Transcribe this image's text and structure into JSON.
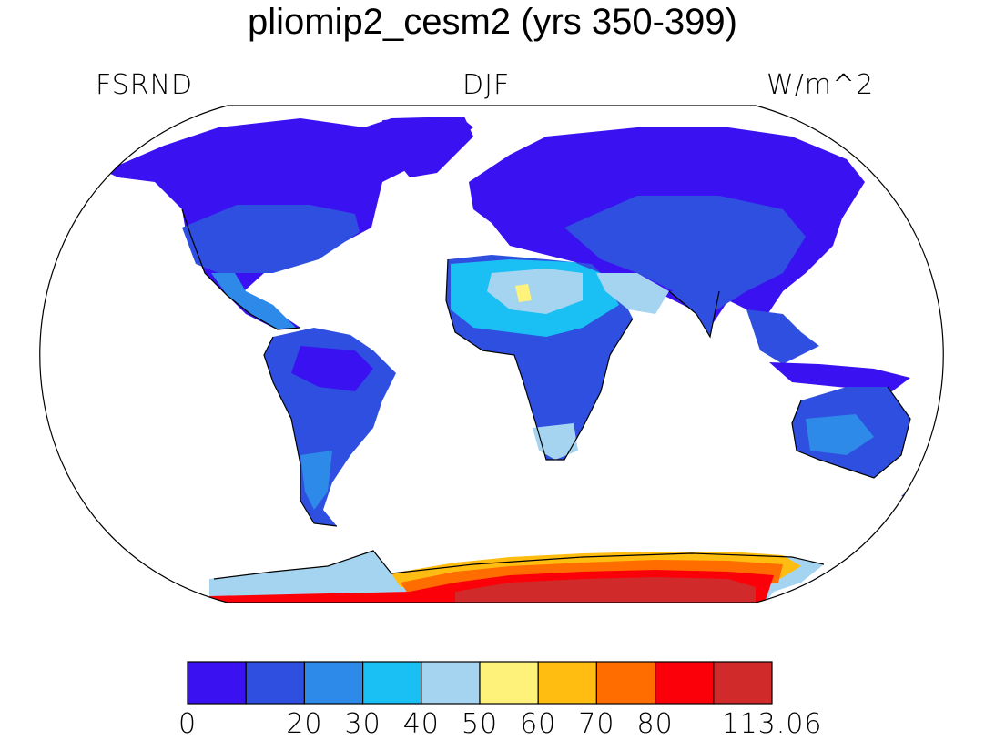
{
  "title": "pliomip2_cesm2 (yrs 350-399)",
  "left_label": "FSRND",
  "center_label": "DJF",
  "right_label": "W/m^2",
  "colorbar": {
    "colors": [
      "#3a12f2",
      "#2f4fe0",
      "#2e8ae8",
      "#1ac0f4",
      "#a5d4f0",
      "#fff27a",
      "#ffbd12",
      "#ff6d00",
      "#fb0008",
      "#d12a2a"
    ],
    "labels": [
      {
        "value": "0",
        "boundary": 0
      },
      {
        "value": "20",
        "boundary": 2
      },
      {
        "value": "30",
        "boundary": 3
      },
      {
        "value": "40",
        "boundary": 4
      },
      {
        "value": "50",
        "boundary": 5
      },
      {
        "value": "60",
        "boundary": 6
      },
      {
        "value": "70",
        "boundary": 7
      },
      {
        "value": "80",
        "boundary": 8
      },
      {
        "value": "113.06",
        "boundary": 10
      }
    ]
  }
}
